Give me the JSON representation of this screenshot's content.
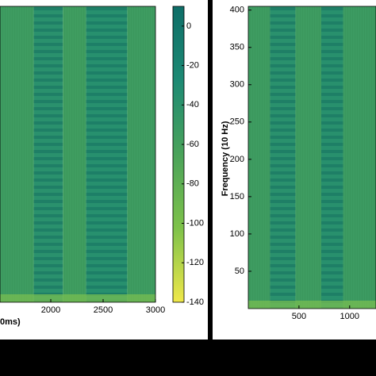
{
  "chart_data": [
    {
      "type": "heatmap",
      "xlabel": "0ms)",
      "xlim": [
        1515,
        3000
      ],
      "xticks": [
        2000,
        2500,
        3000
      ],
      "bands": {
        "edges": [
          1515,
          1838,
          2115,
          2338,
          2730,
          3000
        ],
        "values": [
          -55,
          -38,
          -56,
          -36,
          -55
        ]
      },
      "colorbar": {
        "lim": [
          -140,
          10
        ],
        "ticks": [
          0,
          -20,
          -40,
          -60,
          -80,
          -100,
          -120,
          -140
        ],
        "colors": [
          "#f0e84a",
          "#7ec24a",
          "#4aa35a",
          "#1d8a74",
          "#0e6e68"
        ]
      }
    },
    {
      "type": "heatmap",
      "ylabel": "Frequency (10 Hz)",
      "xlim": [
        0,
        1260
      ],
      "xticks": [
        500,
        1000
      ],
      "ylim": [
        0,
        405
      ],
      "yticks": [
        50,
        100,
        150,
        200,
        250,
        300,
        350,
        400
      ],
      "bands": {
        "edges": [
          0,
          215,
          465,
          720,
          935,
          1260
        ],
        "values": [
          -55,
          -38,
          -55,
          -37,
          -53
        ]
      }
    }
  ]
}
